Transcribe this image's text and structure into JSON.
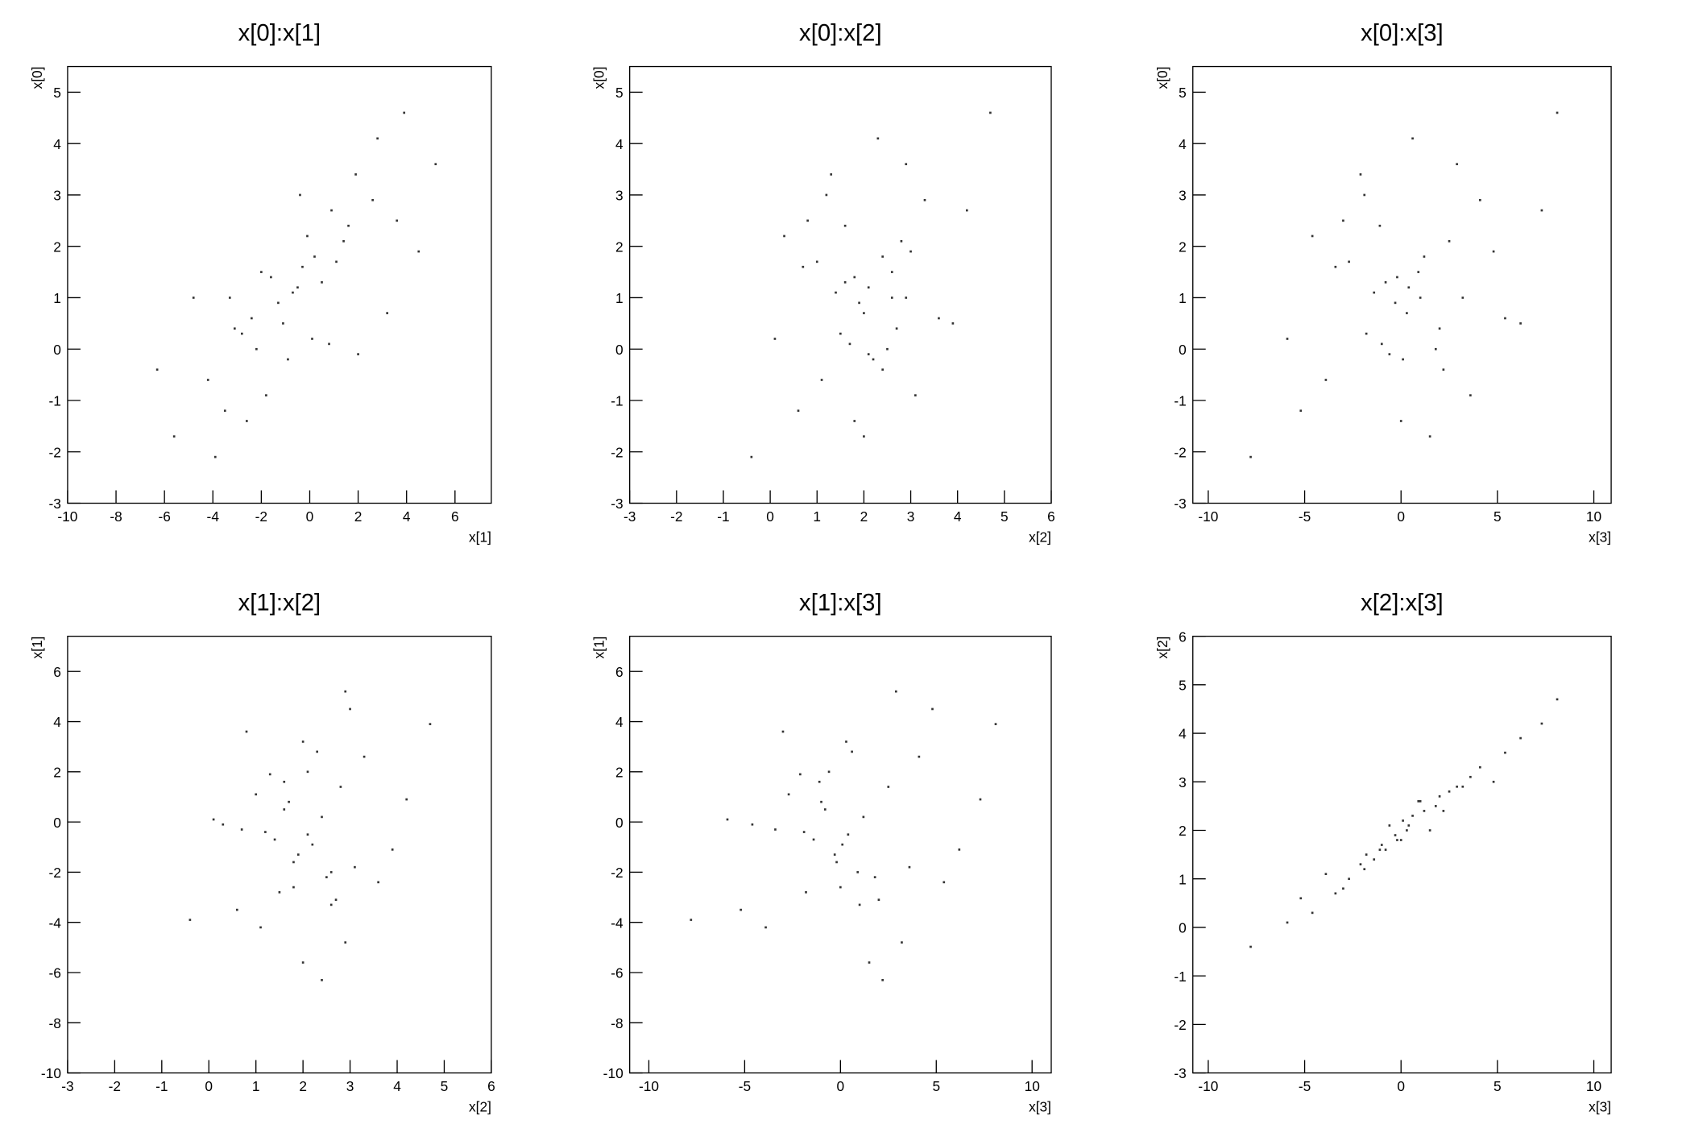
{
  "chart_data": [
    {
      "type": "scatter",
      "title": "x[0]:x[1]",
      "xlabel": "x[1]",
      "ylabel": "x[0]",
      "color": "#333333",
      "xlim": [
        -10,
        7.5
      ],
      "ylim": [
        -3,
        5.5
      ],
      "xticks": [
        -10,
        -8,
        -6,
        -4,
        -2,
        0,
        2,
        4,
        6
      ],
      "yticks": [
        -3,
        -2,
        -1,
        0,
        1,
        2,
        3,
        4,
        5
      ],
      "x": [
        -0.5,
        -2.8,
        1.4,
        -4.2,
        0.2,
        -1.3,
        2.6,
        -3.5,
        -2.0,
        0.8,
        1.9,
        -4.8,
        -0.9,
        3.6,
        -2.4,
        0.5,
        -5.6,
        -0.1,
        -3.1,
        1.1,
        2.8,
        -1.8,
        -0.7,
        -2.2,
        0.9,
        -3.9,
        -1.6,
        3.2,
        -0.4,
        -6.3,
        4.5,
        0.1,
        1.6,
        -3.3,
        -2.6,
        5.2,
        -1.1,
        -0.3,
        2.0,
        3.9
      ],
      "y": [
        1.2,
        0.3,
        2.1,
        -0.6,
        1.8,
        0.9,
        2.9,
        -1.2,
        1.5,
        0.1,
        3.4,
        1.0,
        -0.2,
        2.5,
        0.6,
        1.3,
        -1.7,
        2.2,
        0.4,
        1.7,
        4.1,
        -0.9,
        1.1,
        0.0,
        2.7,
        -2.1,
        1.4,
        0.7,
        3.0,
        -0.4,
        1.9,
        0.2,
        2.4,
        1.0,
        -1.4,
        3.6,
        0.5,
        1.6,
        -0.1,
        4.6
      ]
    },
    {
      "type": "scatter",
      "title": "x[0]:x[2]",
      "xlabel": "x[2]",
      "ylabel": "x[0]",
      "color": "#333333",
      "xlim": [
        -3,
        6
      ],
      "ylim": [
        -3,
        5.5
      ],
      "xticks": [
        -3,
        -2,
        -1,
        0,
        1,
        2,
        3,
        4,
        5,
        6
      ],
      "yticks": [
        -3,
        -2,
        -1,
        0,
        1,
        2,
        3,
        4,
        5
      ],
      "x": [
        2.1,
        1.5,
        2.8,
        1.1,
        2.4,
        1.9,
        3.3,
        0.6,
        2.6,
        1.7,
        1.3,
        2.9,
        2.2,
        0.8,
        3.6,
        1.6,
        2.0,
        0.3,
        2.7,
        1.0,
        2.3,
        3.1,
        1.4,
        2.5,
        4.2,
        -0.4,
        1.8,
        2.0,
        1.2,
        2.4,
        3.0,
        0.1,
        1.6,
        2.6,
        1.8,
        2.9,
        3.9,
        0.7,
        2.1,
        4.7
      ],
      "y": [
        1.2,
        0.3,
        2.1,
        -0.6,
        1.8,
        0.9,
        2.9,
        -1.2,
        1.5,
        0.1,
        3.4,
        1.0,
        -0.2,
        2.5,
        0.6,
        1.3,
        -1.7,
        2.2,
        0.4,
        1.7,
        4.1,
        -0.9,
        1.1,
        0.0,
        2.7,
        -2.1,
        1.4,
        0.7,
        3.0,
        -0.4,
        1.9,
        0.2,
        2.4,
        1.0,
        -1.4,
        3.6,
        0.5,
        1.6,
        -0.1,
        4.6
      ]
    },
    {
      "type": "scatter",
      "title": "x[0]:x[3]",
      "xlabel": "x[3]",
      "ylabel": "x[0]",
      "color": "#333333",
      "xlim": [
        -10.8,
        10.9
      ],
      "ylim": [
        -3,
        5.5
      ],
      "xticks": [
        -10,
        -5,
        0,
        5,
        10
      ],
      "yticks": [
        -3,
        -2,
        -1,
        0,
        1,
        2,
        3,
        4,
        5
      ],
      "x": [
        0.4,
        -1.8,
        2.5,
        -3.9,
        1.2,
        -0.3,
        4.1,
        -5.2,
        0.9,
        -1.0,
        -2.1,
        3.2,
        0.1,
        -3.0,
        5.4,
        -0.8,
        1.5,
        -4.6,
        2.0,
        -2.7,
        0.6,
        3.6,
        -1.4,
        1.8,
        7.3,
        -7.8,
        -0.2,
        0.3,
        -1.9,
        2.2,
        4.8,
        -5.9,
        -1.1,
        1.0,
        0.0,
        2.9,
        6.2,
        -3.4,
        -0.6,
        8.1
      ],
      "y": [
        1.2,
        0.3,
        2.1,
        -0.6,
        1.8,
        0.9,
        2.9,
        -1.2,
        1.5,
        0.1,
        3.4,
        1.0,
        -0.2,
        2.5,
        0.6,
        1.3,
        -1.7,
        2.2,
        0.4,
        1.7,
        4.1,
        -0.9,
        1.1,
        0.0,
        2.7,
        -2.1,
        1.4,
        0.7,
        3.0,
        -0.4,
        1.9,
        0.2,
        2.4,
        1.0,
        -1.4,
        3.6,
        0.5,
        1.6,
        -0.1,
        4.6
      ]
    },
    {
      "type": "scatter",
      "title": "x[1]:x[2]",
      "xlabel": "x[2]",
      "ylabel": "x[1]",
      "color": "#333333",
      "xlim": [
        -3,
        6
      ],
      "ylim": [
        -10,
        7.4
      ],
      "xticks": [
        -3,
        -2,
        -1,
        0,
        1,
        2,
        3,
        4,
        5,
        6
      ],
      "yticks": [
        -10,
        -8,
        -6,
        -4,
        -2,
        0,
        2,
        4,
        6
      ],
      "x": [
        2.1,
        1.5,
        2.8,
        1.1,
        2.4,
        1.9,
        3.3,
        0.6,
        2.6,
        1.7,
        1.3,
        2.9,
        2.2,
        0.8,
        3.6,
        1.6,
        2.0,
        0.3,
        2.7,
        1.0,
        2.3,
        3.1,
        1.4,
        2.5,
        4.2,
        -0.4,
        1.8,
        2.0,
        1.2,
        2.4,
        3.0,
        0.1,
        1.6,
        2.6,
        1.8,
        2.9,
        3.9,
        0.7,
        2.1,
        4.7
      ],
      "y": [
        -0.5,
        -2.8,
        1.4,
        -4.2,
        0.2,
        -1.3,
        2.6,
        -3.5,
        -2.0,
        0.8,
        1.9,
        -4.8,
        -0.9,
        3.6,
        -2.4,
        0.5,
        -5.6,
        -0.1,
        -3.1,
        1.1,
        2.8,
        -1.8,
        -0.7,
        -2.2,
        0.9,
        -3.9,
        -1.6,
        3.2,
        -0.4,
        -6.3,
        4.5,
        0.1,
        1.6,
        -3.3,
        -2.6,
        5.2,
        -1.1,
        -0.3,
        2.0,
        3.9
      ]
    },
    {
      "type": "scatter",
      "title": "x[1]:x[3]",
      "xlabel": "x[3]",
      "ylabel": "x[1]",
      "color": "#333333",
      "xlim": [
        -11,
        11
      ],
      "ylim": [
        -10,
        7.4
      ],
      "xticks": [
        -10,
        -5,
        0,
        5,
        10
      ],
      "yticks": [
        -10,
        -8,
        -6,
        -4,
        -2,
        0,
        2,
        4,
        6
      ],
      "x": [
        0.4,
        -1.8,
        2.5,
        -3.9,
        1.2,
        -0.3,
        4.1,
        -5.2,
        0.9,
        -1.0,
        -2.1,
        3.2,
        0.1,
        -3.0,
        5.4,
        -0.8,
        1.5,
        -4.6,
        2.0,
        -2.7,
        0.6,
        3.6,
        -1.4,
        1.8,
        7.3,
        -7.8,
        -0.2,
        0.3,
        -1.9,
        2.2,
        4.8,
        -5.9,
        -1.1,
        1.0,
        0.0,
        2.9,
        6.2,
        -3.4,
        -0.6,
        8.1
      ],
      "y": [
        -0.5,
        -2.8,
        1.4,
        -4.2,
        0.2,
        -1.3,
        2.6,
        -3.5,
        -2.0,
        0.8,
        1.9,
        -4.8,
        -0.9,
        3.6,
        -2.4,
        0.5,
        -5.6,
        -0.1,
        -3.1,
        1.1,
        2.8,
        -1.8,
        -0.7,
        -2.2,
        0.9,
        -3.9,
        -1.6,
        3.2,
        -0.4,
        -6.3,
        4.5,
        0.1,
        1.6,
        -3.3,
        -2.6,
        5.2,
        -1.1,
        -0.3,
        2.0,
        3.9
      ]
    },
    {
      "type": "scatter",
      "title": "x[2]:x[3]",
      "xlabel": "x[3]",
      "ylabel": "x[2]",
      "color": "#333333",
      "xlim": [
        -10.8,
        10.9
      ],
      "ylim": [
        -3,
        6
      ],
      "xticks": [
        -10,
        -5,
        0,
        5,
        10
      ],
      "yticks": [
        -3,
        -2,
        -1,
        0,
        1,
        2,
        3,
        4,
        5,
        6
      ],
      "x": [
        0.4,
        -1.8,
        2.5,
        -3.9,
        1.2,
        -0.3,
        4.1,
        -5.2,
        0.9,
        -1.0,
        -2.1,
        3.2,
        0.1,
        -3.0,
        5.4,
        -0.8,
        1.5,
        -4.6,
        2.0,
        -2.7,
        0.6,
        3.6,
        -1.4,
        1.8,
        7.3,
        -7.8,
        -0.2,
        0.3,
        -1.9,
        2.2,
        4.8,
        -5.9,
        -1.1,
        1.0,
        0.0,
        2.9,
        6.2,
        -3.4,
        -0.6,
        8.1
      ],
      "y": [
        2.1,
        1.5,
        2.8,
        1.1,
        2.4,
        1.9,
        3.3,
        0.6,
        2.6,
        1.7,
        1.3,
        2.9,
        2.2,
        0.8,
        3.6,
        1.6,
        2.0,
        0.3,
        2.7,
        1.0,
        2.3,
        3.1,
        1.4,
        2.5,
        4.2,
        -0.4,
        1.8,
        2.0,
        1.2,
        2.4,
        3.0,
        0.1,
        1.6,
        2.6,
        1.8,
        2.9,
        3.9,
        0.7,
        2.1,
        4.7
      ]
    }
  ]
}
